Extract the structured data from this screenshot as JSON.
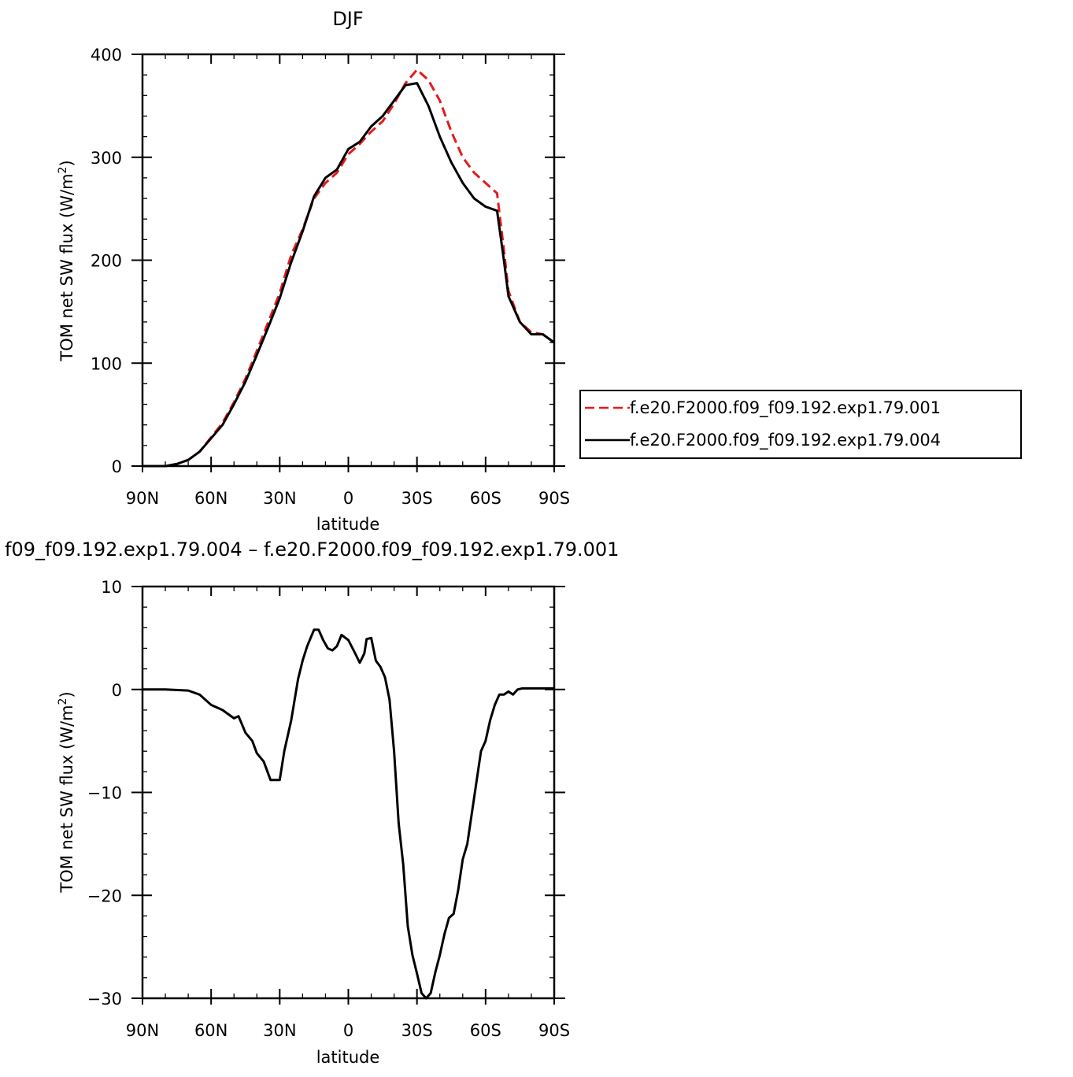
{
  "chart_data": [
    {
      "type": "line",
      "title": "DJF",
      "xlabel": "latitude",
      "ylabel": "TOM net SW flux (W/m²)",
      "ylabel_base": "TOM net SW flux (W/m",
      "ylabel_sup": "2",
      "ylabel_close": ")",
      "xlim": [
        -90,
        90
      ],
      "ylim": [
        0,
        400
      ],
      "x_ticks": [
        -90,
        -60,
        -30,
        0,
        30,
        60,
        90
      ],
      "x_tick_labels": [
        "90N",
        "60N",
        "30N",
        "0",
        "30S",
        "60S",
        "90S"
      ],
      "y_ticks": [
        0,
        100,
        200,
        300,
        400
      ],
      "y_tick_labels": [
        "0",
        "100",
        "200",
        "300",
        "400"
      ],
      "legend_position": "right",
      "series": [
        {
          "name": "f.e20.F2000.f09_f09.192.exp1.79.001",
          "color": "#e41a1c",
          "dash": "dashed",
          "x": [
            -90,
            -80,
            -75,
            -70,
            -65,
            -60,
            -55,
            -50,
            -45,
            -40,
            -35,
            -30,
            -25,
            -20,
            -15,
            -10,
            -5,
            0,
            5,
            10,
            15,
            20,
            25,
            30,
            35,
            40,
            45,
            50,
            55,
            60,
            65,
            68,
            70,
            75,
            80,
            85,
            90
          ],
          "y": [
            0,
            0,
            2,
            6,
            14,
            28,
            42,
            62,
            85,
            112,
            140,
            168,
            205,
            230,
            260,
            275,
            285,
            303,
            313,
            325,
            335,
            352,
            372,
            385,
            375,
            355,
            325,
            300,
            285,
            275,
            265,
            210,
            170,
            140,
            130,
            128,
            120
          ]
        },
        {
          "name": "f.e20.F2000.f09_f09.192.exp1.79.004",
          "color": "#000000",
          "dash": "solid",
          "x": [
            -90,
            -80,
            -75,
            -70,
            -65,
            -60,
            -55,
            -50,
            -45,
            -40,
            -35,
            -30,
            -25,
            -20,
            -15,
            -10,
            -5,
            0,
            5,
            10,
            15,
            20,
            25,
            30,
            35,
            40,
            45,
            50,
            55,
            60,
            65,
            68,
            70,
            75,
            80,
            85,
            90
          ],
          "y": [
            0,
            0,
            2,
            6,
            14,
            27,
            40,
            60,
            82,
            108,
            135,
            163,
            198,
            228,
            262,
            280,
            288,
            308,
            315,
            330,
            340,
            355,
            370,
            372,
            350,
            320,
            295,
            275,
            260,
            252,
            248,
            200,
            165,
            140,
            128,
            128,
            120
          ]
        }
      ]
    },
    {
      "type": "line",
      "title": "f09_f09.192.exp1.79.004 – f.e20.F2000.f09_f09.192.exp1.79.001",
      "xlabel": "latitude",
      "ylabel": "TOM net SW flux (W/m²)",
      "ylabel_base": "TOM net SW flux (W/m",
      "ylabel_sup": "2",
      "ylabel_close": ")",
      "xlim": [
        -90,
        90
      ],
      "ylim": [
        -30,
        10
      ],
      "x_ticks": [
        -90,
        -60,
        -30,
        0,
        30,
        60,
        90
      ],
      "x_tick_labels": [
        "90N",
        "60N",
        "30N",
        "0",
        "30S",
        "60S",
        "90S"
      ],
      "y_ticks": [
        -30,
        -20,
        -10,
        0,
        10
      ],
      "y_tick_labels": [
        "−30",
        "−20",
        "−10",
        "0",
        "10"
      ],
      "series": [
        {
          "color": "#000000",
          "dash": "solid",
          "x": [
            -90,
            -80,
            -70,
            -65,
            -60,
            -55,
            -50,
            -48,
            -45,
            -42,
            -40,
            -37,
            -34,
            -32,
            -30,
            -28,
            -25,
            -22,
            -20,
            -18,
            -15,
            -13,
            -11,
            -9,
            -7,
            -5,
            -3,
            0,
            3,
            5,
            7,
            8,
            10,
            12,
            14,
            16,
            18,
            20,
            22,
            24,
            26,
            28,
            30,
            32,
            34,
            36,
            38,
            40,
            42,
            43,
            44,
            46,
            48,
            50,
            52,
            54,
            56,
            58,
            60,
            62,
            64,
            66,
            68,
            70,
            72,
            74,
            76,
            78,
            80,
            82,
            84,
            86,
            88,
            90
          ],
          "y": [
            0,
            0,
            -0.1,
            -0.5,
            -1.5,
            -2,
            -2.8,
            -2.6,
            -4.2,
            -5,
            -6.2,
            -7,
            -8.8,
            -8.8,
            -8.8,
            -6,
            -3,
            1,
            2.8,
            4.2,
            5.8,
            5.8,
            4.8,
            4,
            3.8,
            4.2,
            5.3,
            4.8,
            3.5,
            2.6,
            3.5,
            4.9,
            5,
            2.8,
            2.2,
            1.2,
            -1,
            -6,
            -13,
            -17,
            -23,
            -25.8,
            -27.6,
            -29.5,
            -30,
            -29.5,
            -27.5,
            -25.8,
            -23.8,
            -23,
            -22.2,
            -21.8,
            -19.5,
            -16.5,
            -15,
            -12,
            -9,
            -6,
            -5,
            -3,
            -1.5,
            -0.5,
            -0.5,
            -0.2,
            -0.5,
            0,
            0.1,
            0.1,
            0.1,
            0.1,
            0.1,
            0.1,
            0.1,
            0.1
          ]
        }
      ]
    }
  ]
}
